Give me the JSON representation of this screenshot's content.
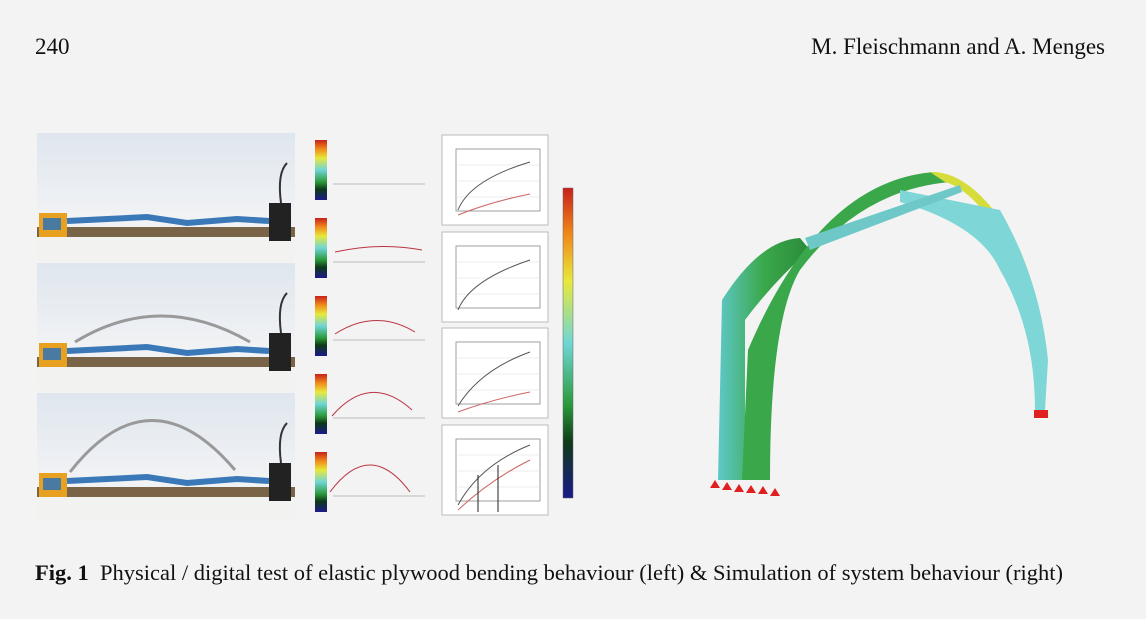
{
  "header": {
    "page_number": "240",
    "authors": "M. Fleischmann and A. Menges"
  },
  "figure": {
    "caption": {
      "label": "Fig. 1",
      "text": "Physical / digital test of elastic plywood bending behaviour (left) & Simulation of system behaviour (right)"
    }
  }
}
